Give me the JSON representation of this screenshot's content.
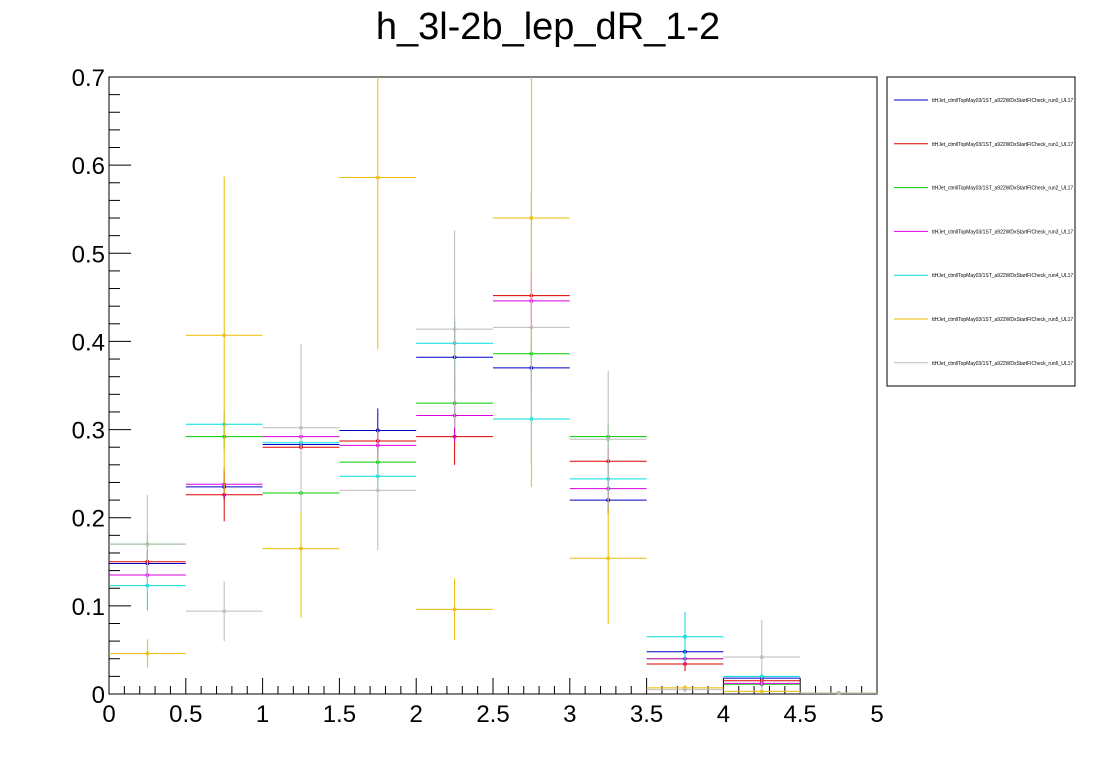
{
  "chart_data": {
    "type": "scatter",
    "title": "h_3l-2b_lep_dR_1-2",
    "xlabel": "",
    "ylabel": "",
    "xlim": [
      0,
      5
    ],
    "ylim": [
      0,
      0.7
    ],
    "x_ticks": [
      "0",
      "0.5",
      "1",
      "1.5",
      "2",
      "2.5",
      "3",
      "3.5",
      "4",
      "4.5",
      "5"
    ],
    "y_ticks": [
      "0",
      "0.1",
      "0.2",
      "0.3",
      "0.4",
      "0.5",
      "0.6",
      "0.7"
    ],
    "bin_edges": [
      0,
      0.5,
      1,
      1.5,
      2,
      2.5,
      3,
      3.5,
      4,
      4.5,
      5
    ],
    "series": [
      {
        "name": "ttHJet_ctmllTopMay03/1ST_a922WDxStartFICheck_run0_UL17",
        "color": "#0000cc",
        "values": [
          0.148,
          0.235,
          0.283,
          0.299,
          0.382,
          0.37,
          0.22,
          0.048,
          0.018,
          0.001
        ],
        "errors": [
          0.012,
          0.015,
          0.012,
          0.025,
          0.04,
          0.03,
          0.015,
          0.008,
          0.004,
          0.001
        ]
      },
      {
        "name": "ttHJet_ctmllTopMay03/1ST_a922WDxStartFICheck_run1_UL17",
        "color": "#dd0000",
        "values": [
          0.15,
          0.226,
          0.28,
          0.287,
          0.292,
          0.452,
          0.264,
          0.034,
          0.015,
          0.001
        ],
        "errors": [
          0.012,
          0.03,
          0.012,
          0.015,
          0.032,
          0.03,
          0.015,
          0.008,
          0.004,
          0.001
        ]
      },
      {
        "name": "ttHJet_ctmllTopMay03/1ST_a922WDxStartFICheck_run2_UL17",
        "color": "#00cc00",
        "values": [
          0.17,
          0.292,
          0.228,
          0.263,
          0.33,
          0.386,
          0.292,
          0.04,
          0.011,
          0.001
        ],
        "errors": [
          0.012,
          0.015,
          0.012,
          0.015,
          0.03,
          0.03,
          0.015,
          0.008,
          0.004,
          0.001
        ]
      },
      {
        "name": "ttHJet_ctmllTopMay03/1ST_a922WDxStartFICheck_run3_UL17",
        "color": "#dd00dd",
        "values": [
          0.135,
          0.238,
          0.292,
          0.282,
          0.316,
          0.446,
          0.233,
          0.04,
          0.012,
          0.001
        ],
        "errors": [
          0.012,
          0.015,
          0.012,
          0.015,
          0.03,
          0.03,
          0.015,
          0.008,
          0.004,
          0.001
        ]
      },
      {
        "name": "ttHJet_ctmllTopMay03/1ST_a922WDxStartFICheck_run4_UL17",
        "color": "#00dddd",
        "values": [
          0.123,
          0.306,
          0.285,
          0.247,
          0.398,
          0.312,
          0.244,
          0.065,
          0.02,
          0.001
        ],
        "errors": [
          0.028,
          0.015,
          0.012,
          0.015,
          0.03,
          0.03,
          0.015,
          0.028,
          0.004,
          0.001
        ]
      },
      {
        "name": "ttHJet_ctmllTopMay03/1ST_a922WDxStartFICheck_run5_UL17",
        "color": "#eebb00",
        "values": [
          0.046,
          0.407,
          0.165,
          0.586,
          0.096,
          0.54,
          0.154,
          0.007,
          0.003,
          0.001
        ],
        "errors": [
          0.016,
          0.18,
          0.078,
          0.195,
          0.035,
          0.305,
          0.075,
          0.003,
          0.002,
          0.001
        ]
      },
      {
        "name": "ttHJet_ctmllTopMay03/1ST_a922WDxStartFICheck_run6_UL17",
        "color": "#bbbbbb",
        "values": [
          0.17,
          0.094,
          0.302,
          0.231,
          0.414,
          0.416,
          0.289,
          0.005,
          0.042,
          0.001
        ],
        "errors": [
          0.056,
          0.034,
          0.095,
          0.068,
          0.112,
          0.155,
          0.078,
          0.003,
          0.042,
          0.001
        ]
      }
    ],
    "legend_position": "top-right",
    "grid": false
  }
}
